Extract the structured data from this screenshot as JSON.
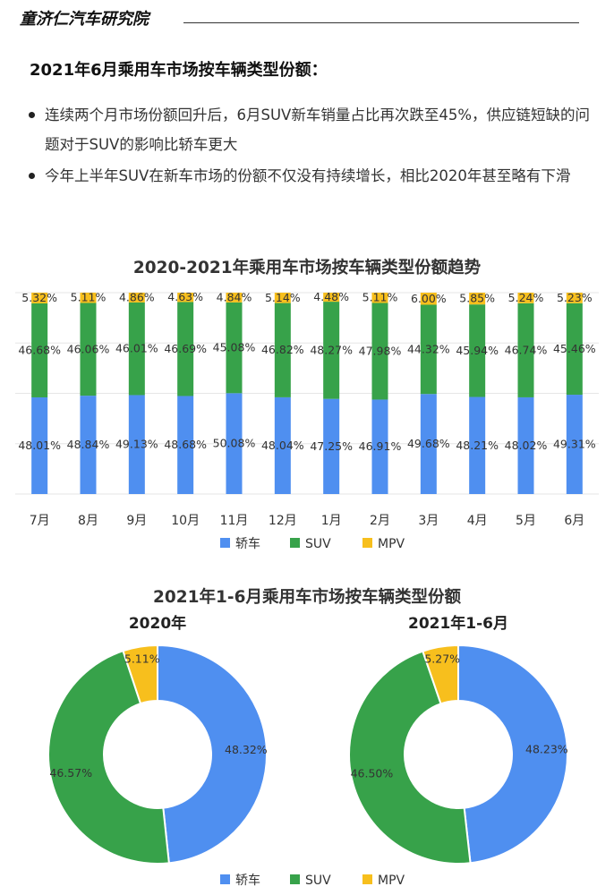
{
  "header": {
    "brand": "童济仁汽车研究院"
  },
  "section": {
    "heading": "2021年6月乘用车市场按车辆类型份额："
  },
  "bullets": [
    {
      "text": "连续两个月市场份额回升后，6月SUV新车销量占比再次跌至45%，供应链短缺的问题对于SUV的影响比轿车更大"
    },
    {
      "text": "今年上半年SUV在新车市场的份额不仅没有持续增长，相比2020年甚至略有下滑"
    }
  ],
  "colors": {
    "sedan": "#4f8ff0",
    "suv": "#37a24a",
    "mpv": "#f7bf1d"
  },
  "chart_data": [
    {
      "type": "bar",
      "stacked": true,
      "title": "2020-2021年乘用车市场按车辆类型份额趋势",
      "categories": [
        "7月",
        "8月",
        "9月",
        "10月",
        "11月",
        "12月",
        "1月",
        "2月",
        "3月",
        "4月",
        "5月",
        "6月"
      ],
      "series": [
        {
          "name": "轿车",
          "values": [
            48.01,
            48.84,
            49.13,
            48.68,
            50.08,
            48.04,
            47.25,
            46.91,
            49.68,
            48.21,
            48.02,
            49.31
          ],
          "labels": [
            "48.01%",
            "48.84%",
            "49.13%",
            "48.68%",
            "50.08%",
            "48.04%",
            "47.25%",
            "46.91%",
            "49.68%",
            "48.21%",
            "48.02%",
            "49.31%"
          ]
        },
        {
          "name": "SUV",
          "values": [
            46.68,
            46.06,
            46.01,
            46.69,
            45.08,
            46.82,
            48.27,
            47.98,
            44.32,
            45.94,
            46.74,
            45.46
          ],
          "labels": [
            "46.68%",
            "46.06%",
            "46.01%",
            "46.69%",
            "45.08%",
            "46.82%",
            "48.27%",
            "47.98%",
            "44.32%",
            "45.94%",
            "46.74%",
            "45.46%"
          ]
        },
        {
          "name": "MPV",
          "values": [
            5.32,
            5.11,
            4.86,
            4.63,
            4.84,
            5.14,
            4.48,
            5.11,
            6.0,
            5.85,
            5.24,
            5.23
          ],
          "labels": [
            "5.32%",
            "5.11%",
            "4.86%",
            "4.63%",
            "4.84%",
            "5.14%",
            "4.48%",
            "5.11%",
            "6.00%",
            "5.85%",
            "5.24%",
            "5.23%"
          ]
        }
      ],
      "ylim": [
        0,
        100
      ],
      "grid": true,
      "legend": "bottom",
      "legend_labels": [
        "轿车",
        "SUV",
        "MPV"
      ]
    },
    {
      "type": "pie",
      "donut": true,
      "title": "2021年1-6月乘用车市场按车辆类型份额",
      "pies": [
        {
          "subtitle": "2020年",
          "slices": [
            {
              "name": "轿车",
              "value": 48.32,
              "label": "48.32%"
            },
            {
              "name": "SUV",
              "value": 46.57,
              "label": "46.57%"
            },
            {
              "name": "MPV",
              "value": 5.11,
              "label": "5.11%"
            }
          ]
        },
        {
          "subtitle": "2021年1-6月",
          "slices": [
            {
              "name": "轿车",
              "value": 48.23,
              "label": "48.23%"
            },
            {
              "name": "SUV",
              "value": 46.5,
              "label": "46.50%"
            },
            {
              "name": "MPV",
              "value": 5.27,
              "label": "5.27%"
            }
          ]
        }
      ],
      "legend": "bottom",
      "legend_labels": [
        "轿车",
        "SUV",
        "MPV"
      ]
    }
  ]
}
